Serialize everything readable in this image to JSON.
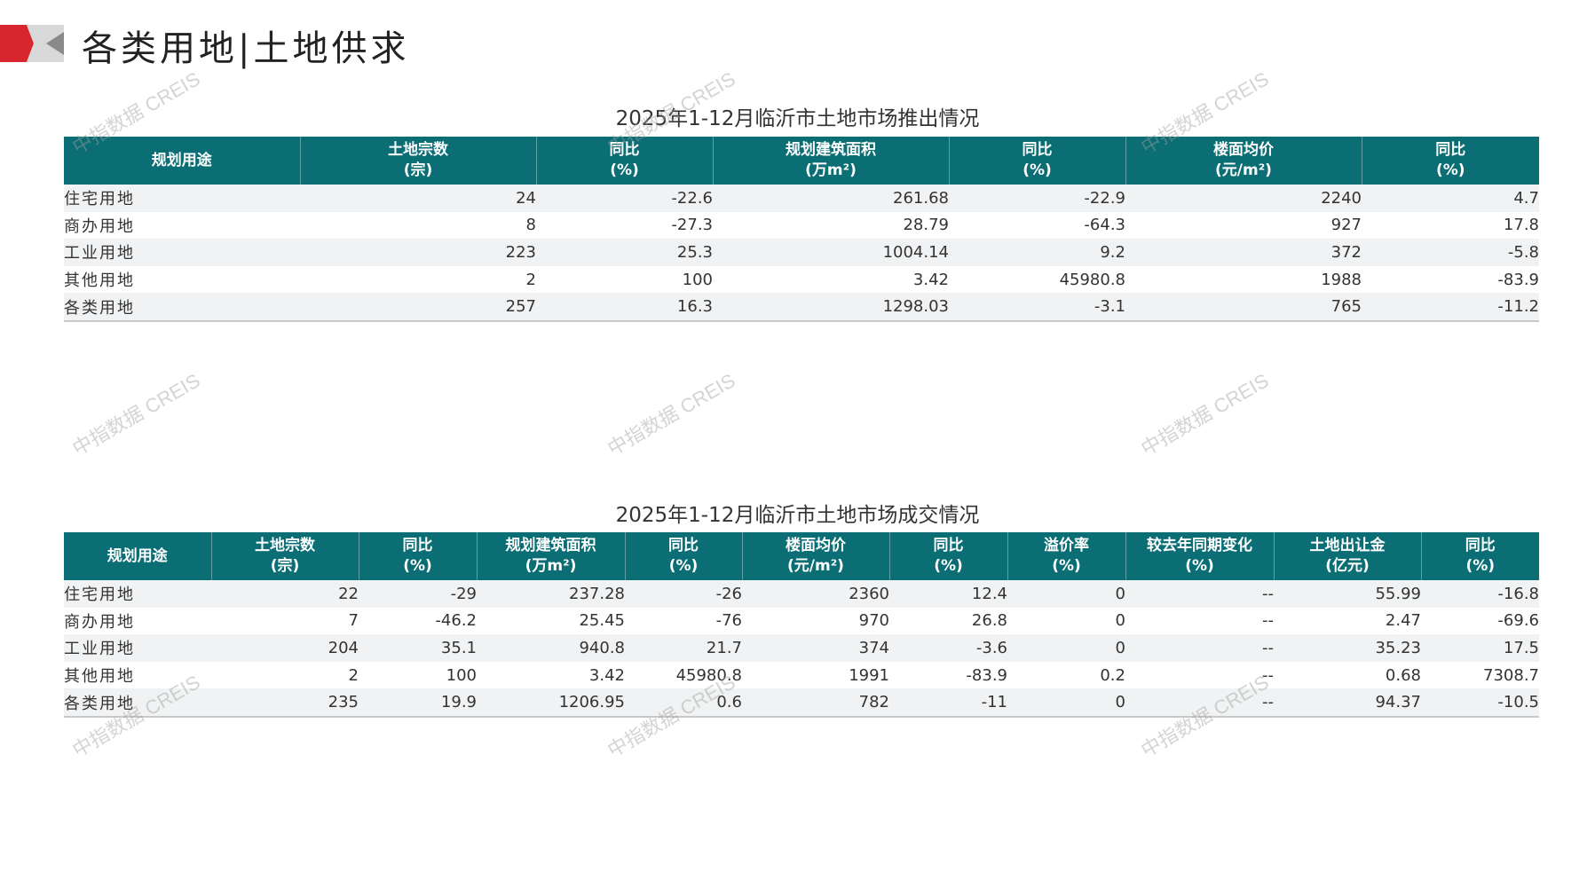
{
  "page": {
    "title": "各类用地|土地供求",
    "watermark": "中指数据 CREIS",
    "colors": {
      "header": "#0b6e75",
      "accent": "#d7262d"
    }
  },
  "supply": {
    "title": "2025年1-12月临沂市土地市场推出情况",
    "headers": [
      [
        "规划用途",
        ""
      ],
      [
        "土地宗数",
        "(宗)"
      ],
      [
        "同比",
        "(%)"
      ],
      [
        "规划建筑面积",
        "(万m²)"
      ],
      [
        "同比",
        "(%)"
      ],
      [
        "楼面均价",
        "(元/m²)"
      ],
      [
        "同比",
        "(%)"
      ]
    ],
    "rows": [
      [
        "住宅用地",
        "24",
        "-22.6",
        "261.68",
        "-22.9",
        "2240",
        "4.7"
      ],
      [
        "商办用地",
        "8",
        "-27.3",
        "28.79",
        "-64.3",
        "927",
        "17.8"
      ],
      [
        "工业用地",
        "223",
        "25.3",
        "1004.14",
        "9.2",
        "372",
        "-5.8"
      ],
      [
        "其他用地",
        "2",
        "100",
        "3.42",
        "45980.8",
        "1988",
        "-83.9"
      ],
      [
        "各类用地",
        "257",
        "16.3",
        "1298.03",
        "-3.1",
        "765",
        "-11.2"
      ]
    ]
  },
  "deal": {
    "title": "2025年1-12月临沂市土地市场成交情况",
    "headers": [
      [
        "规划用途",
        ""
      ],
      [
        "土地宗数",
        "(宗)"
      ],
      [
        "同比",
        "(%)"
      ],
      [
        "规划建筑面积",
        "(万m²)"
      ],
      [
        "同比",
        "(%)"
      ],
      [
        "楼面均价",
        "(元/m²)"
      ],
      [
        "同比",
        "(%)"
      ],
      [
        "溢价率",
        "(%)"
      ],
      [
        "较去年同期变化",
        "(%)"
      ],
      [
        "土地出让金",
        "(亿元)"
      ],
      [
        "同比",
        "(%)"
      ]
    ],
    "rows": [
      [
        "住宅用地",
        "22",
        "-29",
        "237.28",
        "-26",
        "2360",
        "12.4",
        "0",
        "--",
        "55.99",
        "-16.8"
      ],
      [
        "商办用地",
        "7",
        "-46.2",
        "25.45",
        "-76",
        "970",
        "26.8",
        "0",
        "--",
        "2.47",
        "-69.6"
      ],
      [
        "工业用地",
        "204",
        "35.1",
        "940.8",
        "21.7",
        "374",
        "-3.6",
        "0",
        "--",
        "35.23",
        "17.5"
      ],
      [
        "其他用地",
        "2",
        "100",
        "3.42",
        "45980.8",
        "1991",
        "-83.9",
        "0.2",
        "--",
        "0.68",
        "7308.7"
      ],
      [
        "各类用地",
        "235",
        "19.9",
        "1206.95",
        "0.6",
        "782",
        "-11",
        "0",
        "--",
        "94.37",
        "-10.5"
      ]
    ]
  }
}
